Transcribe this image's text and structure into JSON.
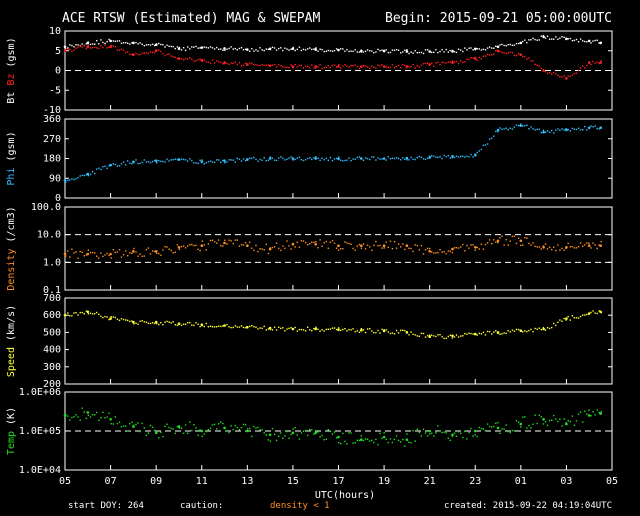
{
  "header": {
    "title": "ACE RTSW (Estimated) MAG & SWEPAM",
    "begin": "Begin: 2015-09-21 05:00:00UTC"
  },
  "footer": {
    "start_doy": "start DOY: 264",
    "caution_label": "caution:",
    "caution_value": "density < 1",
    "created": "created: 2015-09-22 04:19:04UTC"
  },
  "xaxis": {
    "label": "UTC(hours)",
    "ticks": [
      "05",
      "07",
      "09",
      "11",
      "13",
      "15",
      "17",
      "19",
      "21",
      "23",
      "01",
      "03",
      "05"
    ]
  },
  "colors": {
    "bt": "#ffffff",
    "bz": "#ff2020",
    "phi": "#30c0ff",
    "density": "#ff9020",
    "speed": "#ffff30",
    "temp": "#20e020"
  },
  "chart_data": [
    {
      "type": "scatter",
      "panel": "mag_field",
      "ylabel": [
        "Bt",
        "Bz",
        "(gsm)"
      ],
      "yticks": [
        "10",
        "5",
        "0",
        "-5",
        "-10"
      ],
      "ylim": [
        -10,
        10
      ],
      "dashed_line_at": 0,
      "x_hours_since_begin": [
        0,
        1,
        2,
        3,
        4,
        5,
        6,
        7,
        8,
        9,
        10,
        11,
        12,
        13,
        14,
        15,
        16,
        17,
        18,
        19,
        20,
        21,
        22,
        23,
        23.5
      ],
      "series": [
        {
          "name": "Bt",
          "color": "#ffffff",
          "values": [
            6,
            7,
            7.5,
            7,
            6.5,
            5.5,
            5.8,
            5.6,
            5.3,
            5.5,
            5.5,
            5.3,
            5.2,
            5.0,
            4.9,
            4.8,
            4.8,
            4.9,
            5.5,
            6.0,
            7.0,
            8.5,
            8.0,
            7.5,
            7.0
          ]
        },
        {
          "name": "Bz",
          "color": "#ff2020",
          "values": [
            5,
            6,
            6,
            4,
            5,
            3,
            2.5,
            2.0,
            1.5,
            1.2,
            1.0,
            1.0,
            1.0,
            1.0,
            1.0,
            1.0,
            1.5,
            2.0,
            3.0,
            5.0,
            4.0,
            0.0,
            -2.0,
            2.0,
            2.0
          ]
        }
      ]
    },
    {
      "type": "scatter",
      "panel": "phi",
      "ylabel": [
        "Phi",
        "(gsm)"
      ],
      "yticks": [
        "360",
        "270",
        "180",
        "90",
        "0"
      ],
      "ylim": [
        0,
        360
      ],
      "x_hours_since_begin": [
        0,
        1,
        2,
        3,
        4,
        5,
        6,
        7,
        8,
        9,
        10,
        11,
        12,
        13,
        14,
        15,
        16,
        17,
        18,
        19,
        20,
        21,
        22,
        23,
        23.5
      ],
      "values": [
        80,
        110,
        150,
        165,
        170,
        175,
        165,
        170,
        175,
        180,
        180,
        180,
        178,
        180,
        180,
        182,
        185,
        190,
        195,
        310,
        330,
        300,
        310,
        320,
        320
      ]
    },
    {
      "type": "scatter",
      "panel": "density",
      "ylabel": [
        "Density",
        "(/cm3)"
      ],
      "yticks": [
        "100.0",
        "10.0",
        "1.0",
        "0.1"
      ],
      "ylim": [
        0.1,
        100
      ],
      "log_scale": true,
      "dashed_lines_at": [
        1,
        10
      ],
      "x_hours_since_begin": [
        0,
        1,
        2,
        3,
        4,
        5,
        6,
        7,
        8,
        9,
        10,
        11,
        12,
        13,
        14,
        15,
        16,
        17,
        18,
        19,
        20,
        21,
        22,
        23,
        23.5
      ],
      "values": [
        2,
        2,
        2,
        2.5,
        2.5,
        3.5,
        4,
        5,
        4,
        3,
        4.5,
        4.5,
        4,
        4,
        4,
        4,
        2.5,
        3,
        3.5,
        6,
        6,
        3.5,
        3.5,
        4,
        4
      ]
    },
    {
      "type": "scatter",
      "panel": "speed",
      "ylabel": [
        "Speed",
        "(km/s)"
      ],
      "yticks": [
        "700",
        "600",
        "500",
        "400",
        "300",
        "200"
      ],
      "ylim": [
        200,
        700
      ],
      "x_hours_since_begin": [
        0,
        1,
        2,
        3,
        4,
        5,
        6,
        7,
        8,
        9,
        10,
        11,
        12,
        13,
        14,
        15,
        16,
        17,
        18,
        19,
        20,
        21,
        22,
        23,
        23.5
      ],
      "values": [
        600,
        620,
        580,
        560,
        560,
        550,
        545,
        540,
        530,
        525,
        520,
        520,
        515,
        512,
        508,
        500,
        475,
        480,
        490,
        500,
        510,
        520,
        580,
        610,
        620
      ]
    },
    {
      "type": "scatter",
      "panel": "temperature",
      "ylabel": [
        "Temp",
        "(K)"
      ],
      "yticks": [
        "1.0E+06",
        "1.0E+05",
        "1.0E+04"
      ],
      "ylim": [
        10000,
        1000000
      ],
      "log_scale": true,
      "dashed_line_at": 100000,
      "x_hours_since_begin": [
        0,
        1,
        2,
        3,
        4,
        5,
        6,
        7,
        8,
        9,
        10,
        11,
        12,
        13,
        14,
        15,
        16,
        17,
        18,
        19,
        20,
        21,
        22,
        23,
        23.5
      ],
      "values": [
        250000,
        300000,
        200000,
        130000,
        90000,
        130000,
        100000,
        120000,
        100000,
        80000,
        90000,
        90000,
        70000,
        60000,
        70000,
        60000,
        100000,
        80000,
        100000,
        120000,
        150000,
        200000,
        150000,
        250000,
        280000
      ]
    }
  ]
}
